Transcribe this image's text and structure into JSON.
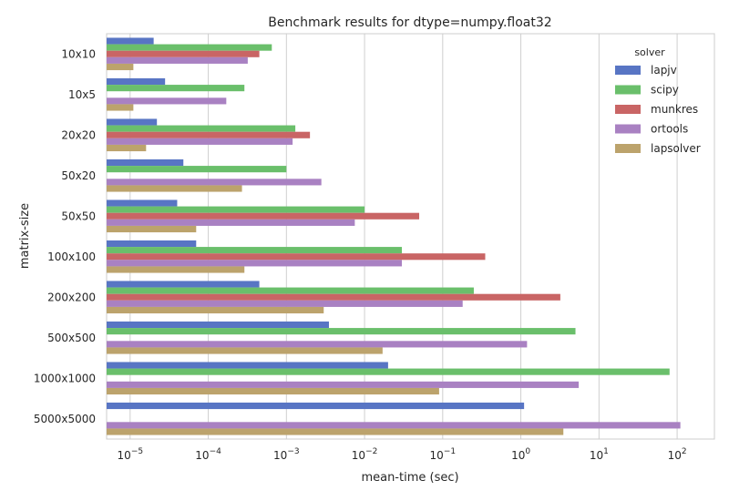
{
  "chart_data": {
    "type": "bar",
    "orientation": "horizontal",
    "title": "Benchmark results for dtype=numpy.float32",
    "xlabel": "mean-time (sec)",
    "ylabel": "matrix-size",
    "xscale": "log",
    "xlim": [
      5e-06,
      300
    ],
    "x_ticks": [
      {
        "value": 1e-05,
        "base": "10",
        "exp": "−5"
      },
      {
        "value": 0.0001,
        "base": "10",
        "exp": "−4"
      },
      {
        "value": 0.001,
        "base": "10",
        "exp": "−3"
      },
      {
        "value": 0.01,
        "base": "10",
        "exp": "−2"
      },
      {
        "value": 0.1,
        "base": "10",
        "exp": "−1"
      },
      {
        "value": 1,
        "base": "10",
        "exp": "0"
      },
      {
        "value": 10,
        "base": "10",
        "exp": "1"
      },
      {
        "value": 100,
        "base": "10",
        "exp": "2"
      }
    ],
    "grid": "vertical",
    "legend_title": "solver",
    "legend_position": "top-right",
    "categories": [
      "10x10",
      "10x5",
      "20x20",
      "50x20",
      "50x50",
      "100x100",
      "200x200",
      "500x500",
      "1000x1000",
      "5000x5000"
    ],
    "series": [
      {
        "name": "lapjv",
        "color": "#5875c4",
        "values": [
          2e-05,
          2.8e-05,
          2.2e-05,
          4.8e-05,
          4e-05,
          7e-05,
          0.00045,
          0.0035,
          0.02,
          1.1
        ]
      },
      {
        "name": "scipy",
        "color": "#6abf6b",
        "values": [
          0.00065,
          0.00029,
          0.0013,
          0.001,
          0.01,
          0.03,
          0.25,
          5,
          80,
          null
        ]
      },
      {
        "name": "munkres",
        "color": "#c96565",
        "values": [
          0.00045,
          null,
          0.002,
          null,
          0.05,
          0.35,
          3.2,
          null,
          null,
          null
        ]
      },
      {
        "name": "ortools",
        "color": "#a981c2",
        "values": [
          0.00032,
          0.00017,
          0.0012,
          0.0028,
          0.0075,
          0.03,
          0.18,
          1.2,
          5.5,
          110
        ]
      },
      {
        "name": "lapsolver",
        "color": "#bca36c",
        "values": [
          1.1e-05,
          1.1e-05,
          1.6e-05,
          0.00027,
          7e-05,
          0.00029,
          0.003,
          0.017,
          0.09,
          3.5
        ]
      }
    ]
  }
}
